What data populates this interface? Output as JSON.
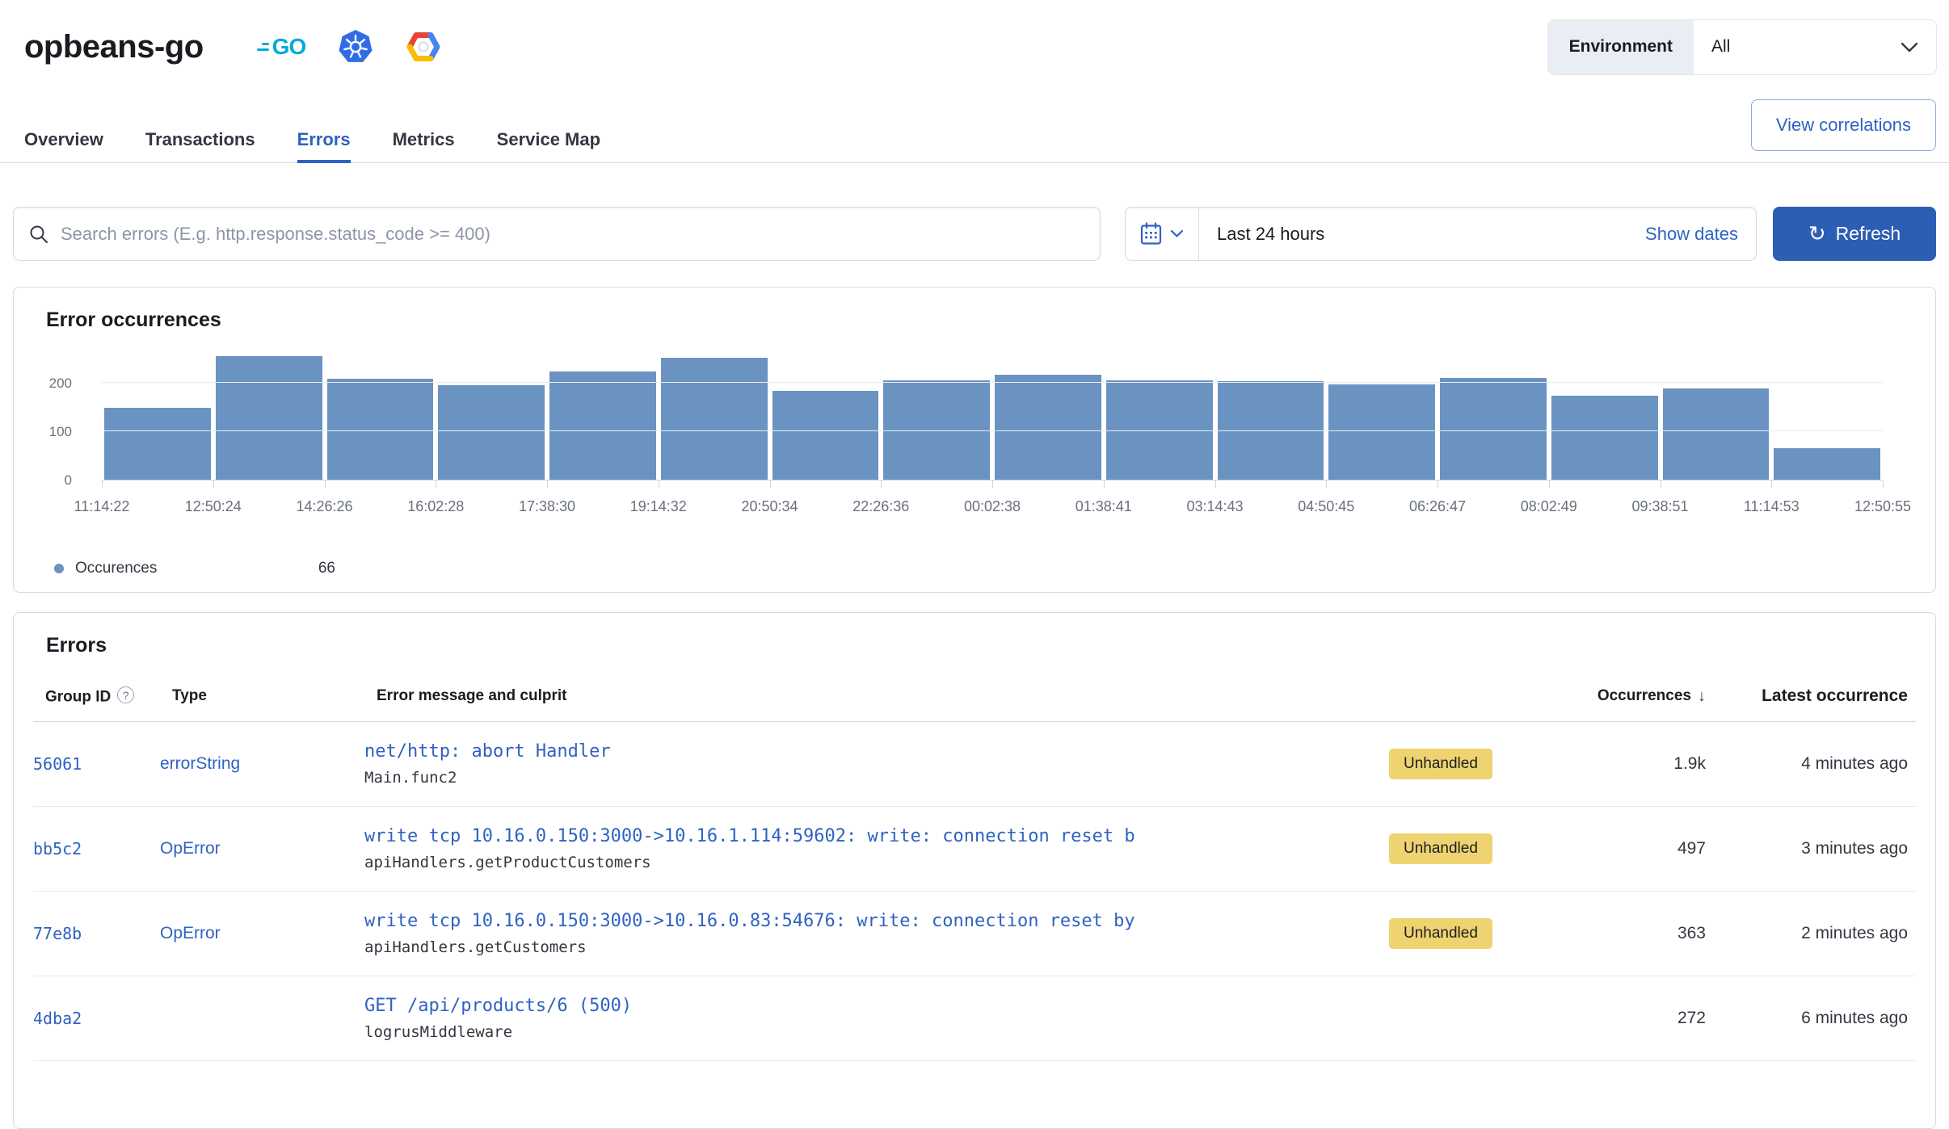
{
  "header": {
    "title": "opbeans-go",
    "go_label": "GO",
    "environment_label": "Environment",
    "environment_value": "All"
  },
  "tabs": [
    {
      "label": "Overview",
      "active": false
    },
    {
      "label": "Transactions",
      "active": false
    },
    {
      "label": "Errors",
      "active": true
    },
    {
      "label": "Metrics",
      "active": false
    },
    {
      "label": "Service Map",
      "active": false
    }
  ],
  "actions": {
    "view_correlations": "View correlations"
  },
  "toolbar": {
    "search_placeholder": "Search errors (E.g. http.response.status_code >= 400)",
    "time_range": "Last 24 hours",
    "show_dates": "Show dates",
    "refresh": "Refresh"
  },
  "chart_data": {
    "type": "bar",
    "title": "Error occurrences",
    "series_name": "Occurences",
    "x_tick_labels": [
      "11:14:22",
      "12:50:24",
      "14:26:26",
      "16:02:28",
      "17:38:30",
      "19:14:32",
      "20:50:34",
      "22:26:36",
      "00:02:38",
      "01:38:41",
      "03:14:43",
      "04:50:45",
      "06:26:47",
      "08:02:49",
      "09:38:51",
      "11:14:53",
      "12:50:55"
    ],
    "values": [
      150,
      257,
      210,
      197,
      224,
      253,
      185,
      207,
      218,
      206,
      204,
      198,
      211,
      175,
      190,
      66
    ],
    "ylim": [
      0,
      270
    ],
    "yticks": [
      0,
      100,
      200
    ],
    "grid": true,
    "legend": {
      "position": "bottom-left",
      "label": "Occurences",
      "value": "66"
    }
  },
  "errors_table": {
    "title": "Errors",
    "columns": {
      "group_id": "Group ID",
      "type": "Type",
      "message": "Error message and culprit",
      "occurrences": "Occurrences",
      "latest": "Latest occurrence"
    },
    "sort": {
      "column": "Occurrences",
      "direction": "desc"
    },
    "rows": [
      {
        "group_id": "56061",
        "type": "errorString",
        "message": "net/http: abort Handler",
        "culprit": "Main.func2",
        "badge": "Unhandled",
        "occurrences": "1.9k",
        "latest": "4 minutes ago"
      },
      {
        "group_id": "bb5c2",
        "type": "OpError",
        "message": "write tcp 10.16.0.150:3000->10.16.1.114:59602: write: connection reset b",
        "culprit": "apiHandlers.getProductCustomers",
        "badge": "Unhandled",
        "occurrences": "497",
        "latest": "3 minutes ago"
      },
      {
        "group_id": "77e8b",
        "type": "OpError",
        "message": "write tcp 10.16.0.150:3000->10.16.0.83:54676: write: connection reset by",
        "culprit": "apiHandlers.getCustomers",
        "badge": "Unhandled",
        "occurrences": "363",
        "latest": "2 minutes ago"
      },
      {
        "group_id": "4dba2",
        "type": "",
        "message": "GET /api/products/6 (500)",
        "culprit": "logrusMiddleware",
        "badge": "",
        "occurrences": "272",
        "latest": "6 minutes ago"
      }
    ]
  },
  "colors": {
    "primary": "#2f62c2",
    "button": "#2c5eb4",
    "bar": "#6b93c2",
    "badge": "#eed370",
    "border": "#d3dae6",
    "text": "#343741",
    "muted": "#69707d"
  }
}
